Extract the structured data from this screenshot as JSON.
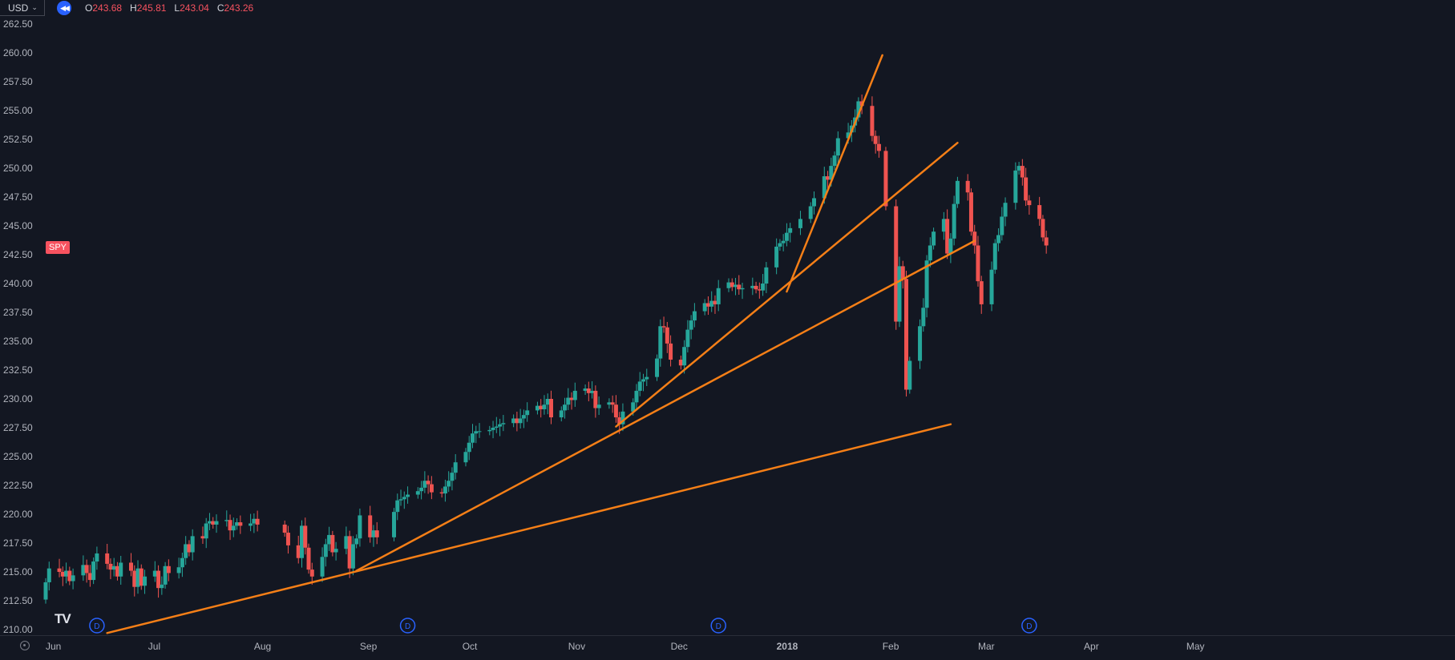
{
  "toolbar": {
    "currency": "USD",
    "replay_icon": "rewind-icon",
    "ohlc": [
      {
        "key": "O",
        "value": "243.68"
      },
      {
        "key": "H",
        "value": "245.81"
      },
      {
        "key": "L",
        "value": "243.04"
      },
      {
        "key": "C",
        "value": "243.26"
      }
    ]
  },
  "symbol_tag": "SPY",
  "branding": "TV",
  "colors": {
    "background": "#131722",
    "up": "#26a69a",
    "down": "#ef5350",
    "trendline": "#f57f17",
    "axis_text": "#b2b5be",
    "dividend_marker": "#2962ff"
  },
  "chart_data": {
    "type": "candlestick",
    "symbol": "SPY",
    "y_axis": {
      "ylim": [
        210,
        262.5
      ],
      "ticks": [
        "262.50",
        "260.00",
        "257.50",
        "255.00",
        "252.50",
        "250.00",
        "247.50",
        "245.00",
        "242.50",
        "240.00",
        "237.50",
        "235.00",
        "232.50",
        "230.00",
        "227.50",
        "225.00",
        "222.50",
        "220.00",
        "217.50",
        "215.00",
        "212.50",
        "210.00"
      ]
    },
    "x_axis": {
      "labels": [
        "Jun",
        "Jul",
        "Aug",
        "Sep",
        "Oct",
        "Nov",
        "Dec",
        "2018",
        "Feb",
        "Mar",
        "Apr",
        "May"
      ]
    },
    "dividend_markers": [
      "D",
      "D",
      "D",
      "D"
    ],
    "trendlines": [
      {
        "from": {
          "date": "2017-06-19",
          "price": 209.7
        },
        "to": {
          "date": "2018-02-21",
          "price": 227.8
        }
      },
      {
        "from": {
          "date": "2017-08-31",
          "price": 215.1
        },
        "to": {
          "date": "2018-02-28",
          "price": 243.7
        }
      },
      {
        "from": {
          "date": "2017-11-15",
          "price": 227.6
        },
        "to": {
          "date": "2018-02-23",
          "price": 252.2
        }
      },
      {
        "from": {
          "date": "2018-01-04",
          "price": 239.3
        },
        "to": {
          "date": "2018-02-01",
          "price": 259.8
        }
      }
    ],
    "segments": [
      {
        "from": "2017-06-01",
        "start": 212.6,
        "days": 20,
        "closes": [
          214.1,
          215.3,
          215.0,
          214.6,
          215.1,
          214.2,
          214.7,
          215.6,
          214.9,
          214.3,
          215.9,
          216.6,
          215.7,
          215.2,
          215.5,
          214.6,
          215.8,
          215.1,
          213.7,
          215.3
        ]
      },
      {
        "from": "2017-06-29",
        "start": 215.3,
        "days": 25,
        "closes": [
          213.8,
          214.6,
          215.1,
          213.6,
          213.9,
          215.5,
          214.9,
          215.4,
          216.2,
          217.4,
          216.7,
          218.1,
          217.9,
          219.2,
          219.4,
          219.1,
          219.4,
          219.5,
          218.6,
          219.0,
          219.3,
          219.0,
          219.2,
          219.6,
          219.1
        ]
      },
      {
        "from": "2017-08-10",
        "start": 219.1,
        "days": 10,
        "closes": [
          218.4,
          217.3,
          216.2,
          219.0,
          217.1,
          215.2,
          214.6,
          216.3,
          217.4,
          218.2
        ]
      },
      {
        "from": "2017-08-24",
        "start": 218.2,
        "days": 10,
        "closes": [
          216.7,
          217.0,
          218.1,
          215.3,
          217.4,
          217.9,
          219.9,
          218.0,
          218.6,
          218.0
        ]
      },
      {
        "from": "2017-09-11",
        "start": 218.0,
        "days": 40,
        "closes": [
          220.2,
          221.2,
          221.3,
          221.5,
          221.7,
          222.0,
          222.3,
          222.9,
          222.6,
          221.9,
          221.8,
          222.4,
          222.9,
          223.6,
          224.5,
          225.4,
          226.2,
          227.0,
          227.2,
          227.2,
          227.3,
          227.5,
          227.6,
          227.8,
          227.9,
          228.3,
          227.9,
          228.3,
          228.6,
          229.0,
          229.4,
          229.1,
          229.5,
          230.0,
          228.4,
          229.0,
          229.5,
          230.1,
          229.9,
          230.7
        ]
      },
      {
        "from": "2017-11-06",
        "start": 230.7,
        "days": 31,
        "closes": [
          230.9,
          230.5,
          230.7,
          229.2,
          229.5,
          229.7,
          229.5,
          228.4,
          227.8,
          228.9,
          229.7,
          230.7,
          231.5,
          231.7,
          231.9,
          233.5,
          236.3,
          236.2,
          234.8,
          233.4,
          232.9,
          234.5,
          236.0,
          236.8,
          237.6,
          238.3,
          238.0,
          238.5,
          238.2,
          239.6,
          240.1
        ]
      },
      {
        "from": "2017-12-19",
        "start": 240.1,
        "days": 15,
        "closes": [
          239.7,
          239.9,
          239.5,
          239.6,
          239.8,
          239.5,
          239.4,
          240.0,
          241.4,
          243.2,
          243.5,
          243.7,
          244.4,
          244.8,
          245.6
        ]
      },
      {
        "from": "2018-01-11",
        "start": 245.6,
        "days": 15,
        "closes": [
          246.7,
          247.4,
          249.3,
          249.0,
          250.2,
          251.1,
          252.6,
          253.1,
          253.7,
          254.4,
          255.8,
          255.4,
          252.8,
          252.1,
          251.5
        ]
      },
      {
        "from": "2018-02-02",
        "start": 251.5,
        "days": 17,
        "closes": [
          246.7,
          236.7,
          241.5,
          240.4,
          230.8,
          233.3,
          236.3,
          237.9,
          242.0,
          243.3,
          244.5,
          245.6,
          242.6,
          243.9,
          246.9,
          248.9,
          247.9
        ]
      },
      {
        "from": "2018-02-27",
        "start": 247.9,
        "days": 17,
        "closes": [
          244.5,
          243.3,
          240.2,
          238.2,
          241.2,
          243.5,
          244.2,
          245.8,
          247.0,
          249.8,
          250.2,
          249.2,
          247.2,
          246.8,
          245.6,
          244.0,
          243.3
        ]
      }
    ]
  }
}
